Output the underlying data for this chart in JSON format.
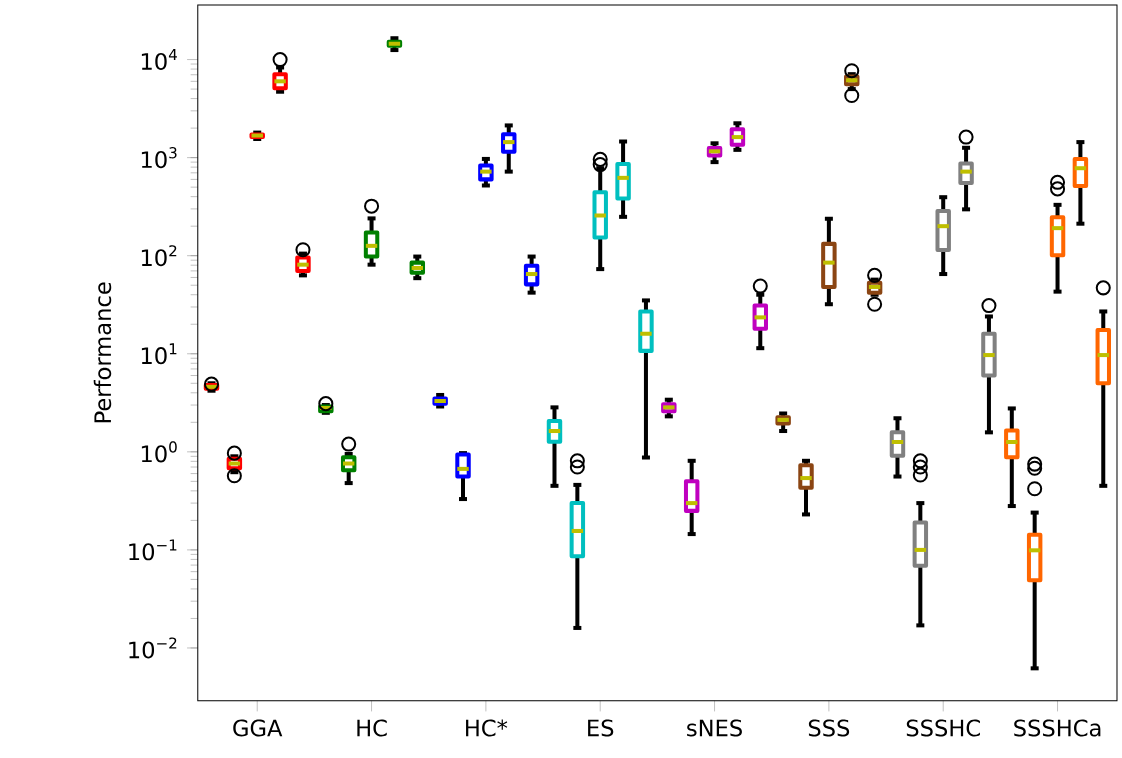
{
  "chart_data": {
    "type": "box",
    "ylabel": "Performance",
    "log": true,
    "categories": [
      "GGA",
      "HC",
      "HC*",
      "ES",
      "sNES",
      "SSS",
      "SSSHC",
      "SSSHCa"
    ],
    "ylim": [
      0.0029,
      36000
    ],
    "yticks": [
      {
        "value": 0.01,
        "label": "10$^{−2}$"
      },
      {
        "value": 0.1,
        "label": "10$^{−1}$"
      },
      {
        "value": 1,
        "label": "10$^{0}$"
      },
      {
        "value": 10,
        "label": "10$^{1}$"
      },
      {
        "value": 100,
        "label": "10$^{2}$"
      },
      {
        "value": 1000,
        "label": "10$^{3}$"
      },
      {
        "value": 10000,
        "label": "10$^{4}$"
      }
    ],
    "series": [
      {
        "colors": [
          "#ff0000",
          "#008000",
          "#0000ff",
          "#00bfbf",
          "#bf00bf",
          "#8b4513",
          "#808080",
          "#ff6600"
        ],
        "boxes": [
          {
            "low": 4.2,
            "q1": 4.4,
            "median": 4.6,
            "q3": 4.8,
            "high": 5.0,
            "outliers": [
              4.9
            ]
          },
          {
            "low": 2.5,
            "q1": 2.6,
            "median": 2.8,
            "q3": 2.9,
            "high": 3.0,
            "outliers": [
              3.1
            ]
          },
          {
            "low": 2.9,
            "q1": 3.1,
            "median": 3.3,
            "q3": 3.5,
            "high": 3.8
          },
          {
            "low": 0.45,
            "q1": 1.27,
            "median": 1.63,
            "q3": 2.06,
            "high": 2.84
          },
          {
            "low": 2.3,
            "q1": 2.6,
            "median": 2.84,
            "q3": 3.05,
            "high": 3.4
          },
          {
            "low": 1.63,
            "q1": 1.95,
            "median": 2.12,
            "q3": 2.25,
            "high": 2.46
          },
          {
            "low": 0.56,
            "q1": 0.91,
            "median": 1.26,
            "q3": 1.58,
            "high": 2.2
          },
          {
            "low": 0.28,
            "q1": 0.88,
            "median": 1.26,
            "q3": 1.65,
            "high": 2.77
          }
        ]
      },
      {
        "colors": [
          "#ff0000",
          "#008000",
          "#0000ff",
          "#00bfbf",
          "#bf00bf",
          "#8b4513",
          "#808080",
          "#ff6600"
        ],
        "boxes": [
          {
            "low": 0.62,
            "q1": 0.68,
            "median": 0.76,
            "q3": 0.85,
            "high": 0.9,
            "outliers": [
              0.97,
              0.57
            ]
          },
          {
            "low": 0.48,
            "q1": 0.65,
            "median": 0.76,
            "q3": 0.88,
            "high": 0.95,
            "outliers": [
              1.2
            ]
          },
          {
            "low": 0.33,
            "q1": 0.56,
            "median": 0.67,
            "q3": 0.94,
            "high": 0.97
          },
          {
            "low": 0.016,
            "q1": 0.086,
            "median": 0.156,
            "q3": 0.3,
            "high": 0.46,
            "outliers": [
              0.81,
              0.7
            ]
          },
          {
            "low": 0.145,
            "q1": 0.25,
            "median": 0.3,
            "q3": 0.5,
            "high": 0.81
          },
          {
            "low": 0.23,
            "q1": 0.43,
            "median": 0.54,
            "q3": 0.73,
            "high": 0.81
          },
          {
            "low": 0.017,
            "q1": 0.069,
            "median": 0.1,
            "q3": 0.19,
            "high": 0.3,
            "outliers": [
              0.81,
              0.7,
              0.58
            ]
          },
          {
            "low": 0.0062,
            "q1": 0.049,
            "median": 0.099,
            "q3": 0.143,
            "high": 0.24,
            "outliers": [
              0.75,
              0.68,
              0.42
            ]
          }
        ]
      },
      {
        "colors": [
          "#ff0000",
          "#008000",
          "#0000ff",
          "#00bfbf",
          "#bf00bf",
          "#8b4513",
          "#808080",
          "#ff6600"
        ],
        "boxes": [
          {
            "low": 1550,
            "q1": 1620,
            "median": 1680,
            "q3": 1720,
            "high": 1800
          },
          {
            "low": 81,
            "q1": 98,
            "median": 126,
            "q3": 172,
            "high": 240,
            "outliers": [
              320
            ]
          },
          {
            "low": 520,
            "q1": 600,
            "median": 720,
            "q3": 830,
            "high": 970
          },
          {
            "low": 73,
            "q1": 153,
            "median": 257,
            "q3": 443,
            "high": 780,
            "outliers": [
              960,
              850
            ]
          },
          {
            "low": 900,
            "q1": 1050,
            "median": 1160,
            "q3": 1250,
            "high": 1400
          },
          {
            "low": 32,
            "q1": 48,
            "median": 85,
            "q3": 132,
            "high": 238
          },
          {
            "low": 65,
            "q1": 114,
            "median": 200,
            "q3": 285,
            "high": 395
          },
          {
            "low": 43,
            "q1": 101,
            "median": 191,
            "q3": 246,
            "high": 330,
            "outliers": [
              560,
              480
            ]
          }
        ]
      },
      {
        "colors": [
          "#ff0000",
          "#008000",
          "#0000ff",
          "#00bfbf",
          "#bf00bf",
          "#8b4513",
          "#808080",
          "#ff6600"
        ],
        "boxes": [
          {
            "low": 4700,
            "q1": 5100,
            "median": 6000,
            "q3": 7100,
            "high": 8300,
            "outliers": [
              10000
            ]
          },
          {
            "low": 12500,
            "q1": 13800,
            "median": 14500,
            "q3": 15200,
            "high": 16500
          },
          {
            "low": 720,
            "q1": 1150,
            "median": 1440,
            "q3": 1730,
            "high": 2130
          },
          {
            "low": 249,
            "q1": 383,
            "median": 622,
            "q3": 860,
            "high": 1460
          },
          {
            "low": 1200,
            "q1": 1350,
            "median": 1620,
            "q3": 1950,
            "high": 2240
          },
          {
            "low": 5000,
            "q1": 5600,
            "median": 6150,
            "q3": 6700,
            "high": 7100,
            "outliers": [
              7700,
              4300
            ]
          },
          {
            "low": 297,
            "q1": 550,
            "median": 720,
            "q3": 870,
            "high": 1260,
            "outliers": [
              1620
            ]
          },
          {
            "low": 212,
            "q1": 515,
            "median": 780,
            "q3": 970,
            "high": 1440
          }
        ]
      },
      {
        "colors": [
          "#ff0000",
          "#008000",
          "#0000ff",
          "#00bfbf",
          "#bf00bf",
          "#8b4513",
          "#808080",
          "#ff6600"
        ],
        "boxes": [
          {
            "low": 63,
            "q1": 70,
            "median": 81,
            "q3": 96,
            "high": 105,
            "outliers": [
              115
            ]
          },
          {
            "low": 59,
            "q1": 67,
            "median": 75,
            "q3": 85,
            "high": 98
          },
          {
            "low": 42,
            "q1": 51,
            "median": 65,
            "q3": 79,
            "high": 98
          },
          {
            "low": 0.875,
            "q1": 10.7,
            "median": 16,
            "q3": 27,
            "high": 35
          },
          {
            "low": 11.4,
            "q1": 18,
            "median": 23.5,
            "q3": 31,
            "high": 40,
            "outliers": [
              49
            ]
          },
          {
            "low": 40,
            "q1": 42,
            "median": 48,
            "q3": 53,
            "high": 57,
            "outliers": [
              63,
              32
            ]
          },
          {
            "low": 1.58,
            "q1": 6.0,
            "median": 9.7,
            "q3": 16,
            "high": 24,
            "outliers": [
              31
            ]
          },
          {
            "low": 0.45,
            "q1": 5.0,
            "median": 9.7,
            "q3": 17.5,
            "high": 27,
            "outliers": [
              47
            ]
          }
        ]
      }
    ]
  }
}
